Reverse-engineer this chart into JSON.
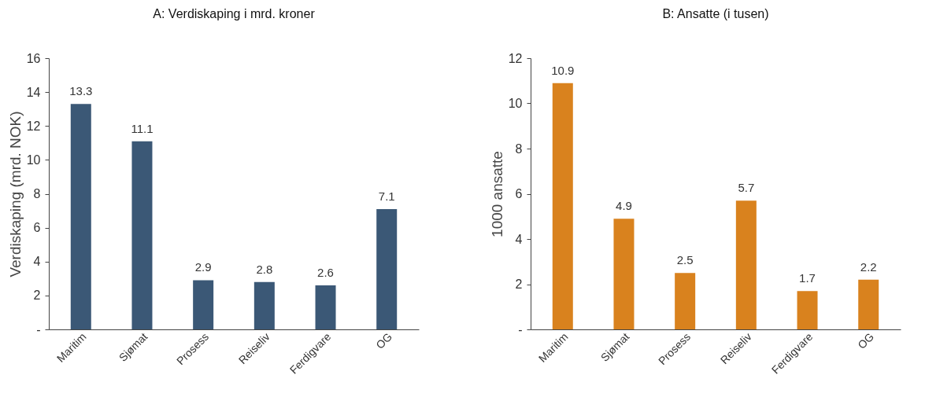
{
  "chart_data": [
    {
      "type": "bar",
      "title": "A: Verdiskaping i mrd. kroner",
      "ylabel": "Verdiskaping (mrd. NOK)",
      "categories": [
        "Maritim",
        "Sjømat",
        "Prosess",
        "Reiseliv",
        "Ferdigvare",
        "OG"
      ],
      "values": [
        13.3,
        11.1,
        2.9,
        2.8,
        2.6,
        7.1
      ],
      "color": "#3b5876",
      "ylim": [
        0,
        16
      ],
      "yticks": [
        {
          "value": 0,
          "label": "-"
        },
        2,
        4,
        6,
        8,
        10,
        12,
        14,
        16
      ],
      "data_labels": true,
      "grid": false
    },
    {
      "type": "bar",
      "title": "B: Ansatte (i tusen)",
      "ylabel": "1000 ansatte",
      "categories": [
        "Maritim",
        "Sjømat",
        "Prosess",
        "Reiseliv",
        "Ferdigvare",
        "OG"
      ],
      "values": [
        10.9,
        4.9,
        2.5,
        5.7,
        1.7,
        2.2
      ],
      "color": "#d9821e",
      "ylim": [
        0,
        12
      ],
      "yticks": [
        {
          "value": 0,
          "label": "-"
        },
        2,
        4,
        6,
        8,
        10,
        12
      ],
      "data_labels": true,
      "grid": false
    }
  ]
}
